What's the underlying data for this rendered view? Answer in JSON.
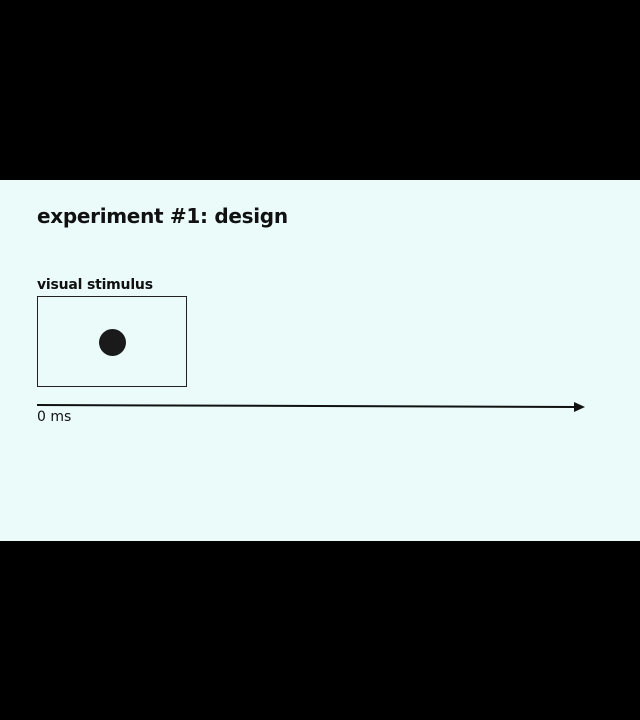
{
  "slide": {
    "title": "experiment #1: design",
    "background": "#eafbfa"
  },
  "stimulus": {
    "label": "visual stimulus",
    "shape": "filled-circle"
  },
  "timeline": {
    "start_label": "0 ms"
  }
}
